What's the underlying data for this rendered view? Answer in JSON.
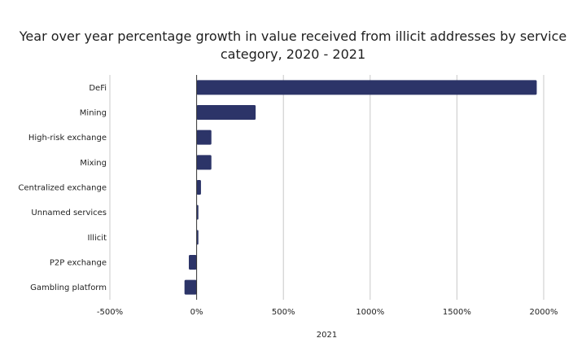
{
  "chart_data": {
    "type": "bar",
    "orientation": "horizontal",
    "title_line1": "Year over year percentage growth in value received from illicit addresses by service",
    "title_line2": "category, 2020 - 2021",
    "xlabel": "2021",
    "ylabel": "",
    "xlim": [
      -500,
      2000
    ],
    "xticks": [
      "-500%",
      "0%",
      "500%",
      "1000%",
      "1500%",
      "2000%"
    ],
    "xtick_values": [
      -500,
      0,
      500,
      1000,
      1500,
      2000
    ],
    "categories": [
      "DeFi",
      "Mining",
      "High-risk exchange",
      "Mixing",
      "Centralized exchange",
      "Unnamed services",
      "Illicit",
      "P2P exchange",
      "Gambling platform"
    ],
    "values": [
      1960,
      340,
      85,
      85,
      25,
      10,
      10,
      -45,
      -70
    ],
    "bar_color": "#2c3468",
    "gridlines": true,
    "legend": "none"
  }
}
